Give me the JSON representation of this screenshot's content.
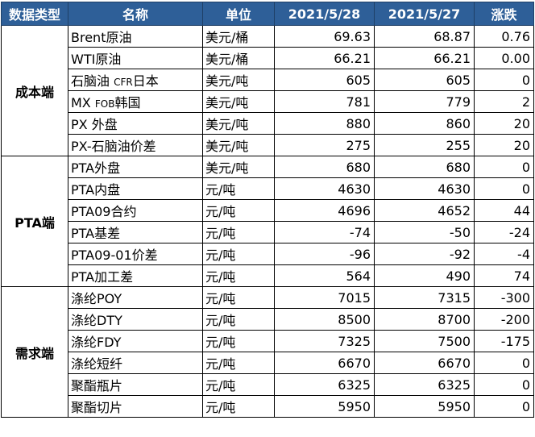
{
  "headers": [
    "数据类型",
    "名称",
    "单位",
    "2021/5/28",
    "2021/5/27",
    "涨跌"
  ],
  "groups": [
    {
      "label": "成本端",
      "rows": [
        {
          "name": "Brent原油",
          "unit": "美元/桶",
          "d1": "69.63",
          "d2": "68.87",
          "chg": "0.76"
        },
        {
          "name": "WTI原油",
          "unit": "美元/桶",
          "d1": "66.21",
          "d2": "66.21",
          "chg": "0.00"
        },
        {
          "name_main": "石脑油",
          "name_small": "CFR",
          "name_tail": "日本",
          "unit": "美元/吨",
          "d1": "605",
          "d2": "605",
          "chg": "0"
        },
        {
          "name_main": "MX",
          "name_small": "FOB",
          "name_tail": "韩国",
          "unit": "美元/吨",
          "d1": "781",
          "d2": "779",
          "chg": "2"
        },
        {
          "name": "PX 外盘",
          "unit": "美元/吨",
          "d1": "880",
          "d2": "860",
          "chg": "20"
        },
        {
          "name": "PX-石脑油价差",
          "unit": "美元/吨",
          "d1": "275",
          "d2": "255",
          "chg": "20"
        }
      ]
    },
    {
      "label": "PTA端",
      "rows": [
        {
          "name": "PTA外盘",
          "unit": "美元/吨",
          "d1": "680",
          "d2": "680",
          "chg": "0"
        },
        {
          "name": "PTA内盘",
          "unit": "元/吨",
          "d1": "4630",
          "d2": "4630",
          "chg": "0"
        },
        {
          "name": "PTA09合约",
          "unit": "元/吨",
          "d1": "4696",
          "d2": "4652",
          "chg": "44"
        },
        {
          "name": "PTA基差",
          "unit": "元/吨",
          "d1": "-74",
          "d2": "-50",
          "chg": "-24"
        },
        {
          "name": "PTA09-01价差",
          "unit": "元/吨",
          "d1": "-96",
          "d2": "-92",
          "chg": "-4"
        },
        {
          "name": "PTA加工差",
          "unit": "元/吨",
          "d1": "564",
          "d2": "490",
          "chg": "74"
        }
      ]
    },
    {
      "label": "需求端",
      "rows": [
        {
          "name": "涤纶POY",
          "unit": "元/吨",
          "d1": "7015",
          "d2": "7315",
          "chg": "-300"
        },
        {
          "name": "涤纶DTY",
          "unit": "元/吨",
          "d1": "8500",
          "d2": "8700",
          "chg": "-200"
        },
        {
          "name": "涤纶FDY",
          "unit": "元/吨",
          "d1": "7325",
          "d2": "7500",
          "chg": "-175"
        },
        {
          "name": "涤纶短纤",
          "unit": "元/吨",
          "d1": "6670",
          "d2": "6670",
          "chg": "0"
        },
        {
          "name": "聚酯瓶片",
          "unit": "元/吨",
          "d1": "6325",
          "d2": "6325",
          "chg": "0"
        },
        {
          "name": "聚酯切片",
          "unit": "元/吨",
          "d1": "5950",
          "d2": "5950",
          "chg": "0"
        }
      ]
    }
  ]
}
